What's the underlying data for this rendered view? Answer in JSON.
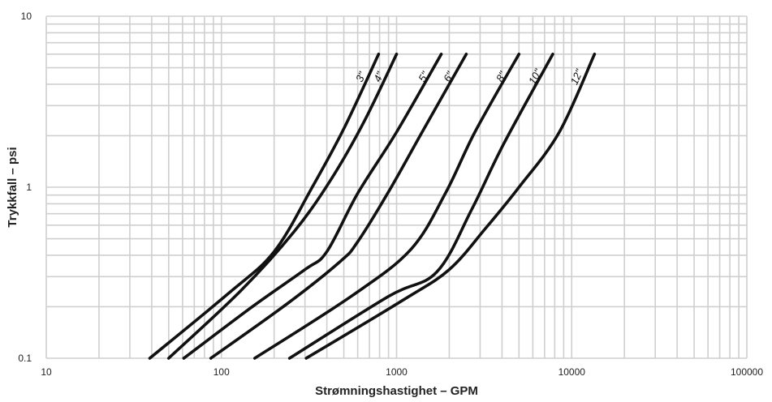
{
  "chart_data": {
    "type": "line",
    "xlabel": "Strømningshastighet – GPM",
    "ylabel": "Trykkfall – psi",
    "x_scale": "log",
    "y_scale": "log",
    "xlim": [
      10,
      100000
    ],
    "ylim": [
      0.1,
      10
    ],
    "grid": true,
    "x_ticks": [
      {
        "value": 10,
        "label": "10"
      },
      {
        "value": 100,
        "label": "100"
      },
      {
        "value": 1000,
        "label": "1000"
      },
      {
        "value": 10000,
        "label": "10000"
      },
      {
        "value": 100000,
        "label": "100000"
      }
    ],
    "y_ticks": [
      {
        "value": 0.1,
        "label": "0.1"
      },
      {
        "value": 1,
        "label": "1"
      },
      {
        "value": 10,
        "label": "10"
      }
    ],
    "series": [
      {
        "name": "3\"",
        "points": [
          [
            39,
            0.1
          ],
          [
            110,
            0.24
          ],
          [
            200,
            0.42
          ],
          [
            330,
            1.0
          ],
          [
            500,
            2.2
          ],
          [
            790,
            6.0
          ]
        ]
      },
      {
        "name": "4\"",
        "points": [
          [
            50,
            0.1
          ],
          [
            130,
            0.25
          ],
          [
            260,
            0.55
          ],
          [
            420,
            1.1
          ],
          [
            650,
            2.4
          ],
          [
            1000,
            6.0
          ]
        ]
      },
      {
        "name": "5\"",
        "points": [
          [
            61,
            0.1
          ],
          [
            150,
            0.2
          ],
          [
            300,
            0.33
          ],
          [
            400,
            0.42
          ],
          [
            600,
            0.92
          ],
          [
            1000,
            2.1
          ],
          [
            1800,
            6.0
          ]
        ]
      },
      {
        "name": "6\"",
        "points": [
          [
            87,
            0.1
          ],
          [
            240,
            0.21
          ],
          [
            480,
            0.37
          ],
          [
            600,
            0.48
          ],
          [
            900,
            0.94
          ],
          [
            1400,
            2.1
          ],
          [
            2500,
            6.0
          ]
        ]
      },
      {
        "name": "8\"",
        "points": [
          [
            155,
            0.1
          ],
          [
            550,
            0.23
          ],
          [
            1200,
            0.43
          ],
          [
            1900,
            0.92
          ],
          [
            2800,
            2.1
          ],
          [
            5000,
            6.0
          ]
        ]
      },
      {
        "name": "10\"",
        "points": [
          [
            245,
            0.1
          ],
          [
            900,
            0.23
          ],
          [
            1700,
            0.32
          ],
          [
            2700,
            0.75
          ],
          [
            4100,
            1.8
          ],
          [
            7800,
            6.0
          ]
        ]
      },
      {
        "name": "12\"",
        "points": [
          [
            305,
            0.1
          ],
          [
            1100,
            0.22
          ],
          [
            2000,
            0.33
          ],
          [
            3200,
            0.57
          ],
          [
            5000,
            1.0
          ],
          [
            8500,
            2.1
          ],
          [
            13500,
            6.0
          ]
        ]
      }
    ]
  }
}
